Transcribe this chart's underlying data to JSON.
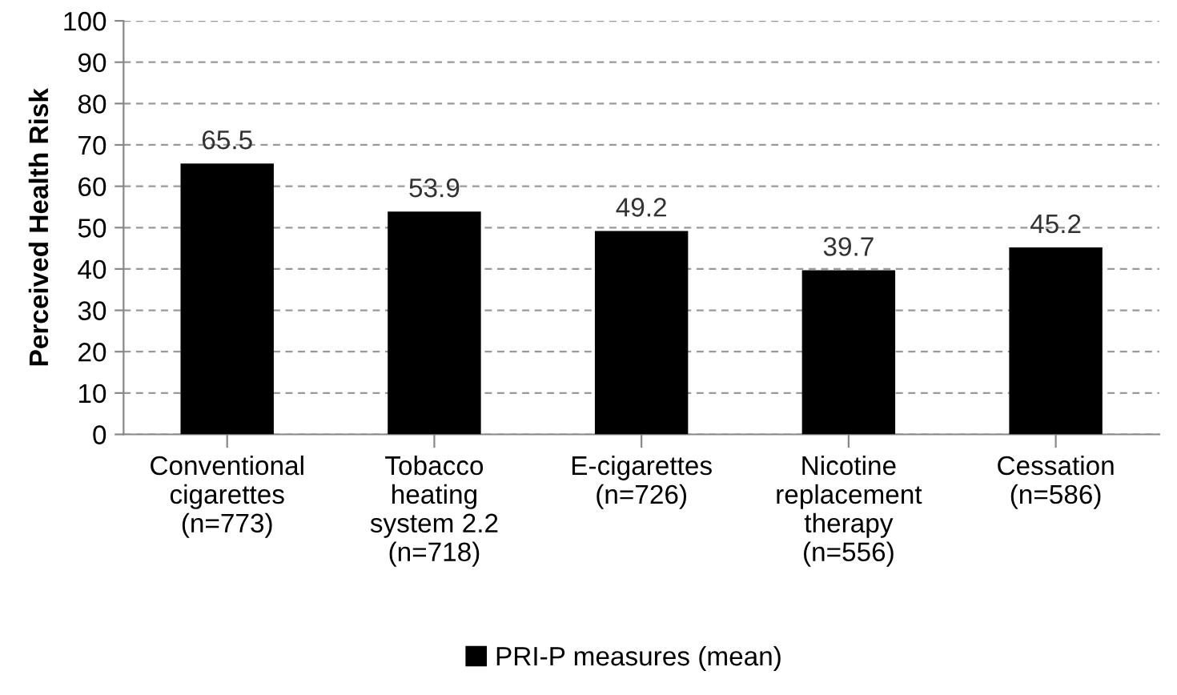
{
  "chart_data": {
    "type": "bar",
    "ylabel": "Perceived Health Risk",
    "categories": [
      "Conventional\ncigarettes\n(n=773)",
      "Tobacco\nheating\nsystem 2.2\n(n=718)",
      "E-cigarettes\n(n=726)",
      "Nicotine\nreplacement\ntherapy\n(n=556)",
      "Cessation\n(n=586)"
    ],
    "series": [
      {
        "name": "PRI-P measures (mean)",
        "color": "#000000",
        "values": [
          65.5,
          53.9,
          49.2,
          39.7,
          45.2
        ]
      }
    ],
    "ylim": [
      0,
      100
    ],
    "yticks": [
      0,
      10,
      20,
      30,
      40,
      50,
      60,
      70,
      80,
      90,
      100
    ],
    "grid": "y",
    "legend": "bottom",
    "data_labels": true
  }
}
